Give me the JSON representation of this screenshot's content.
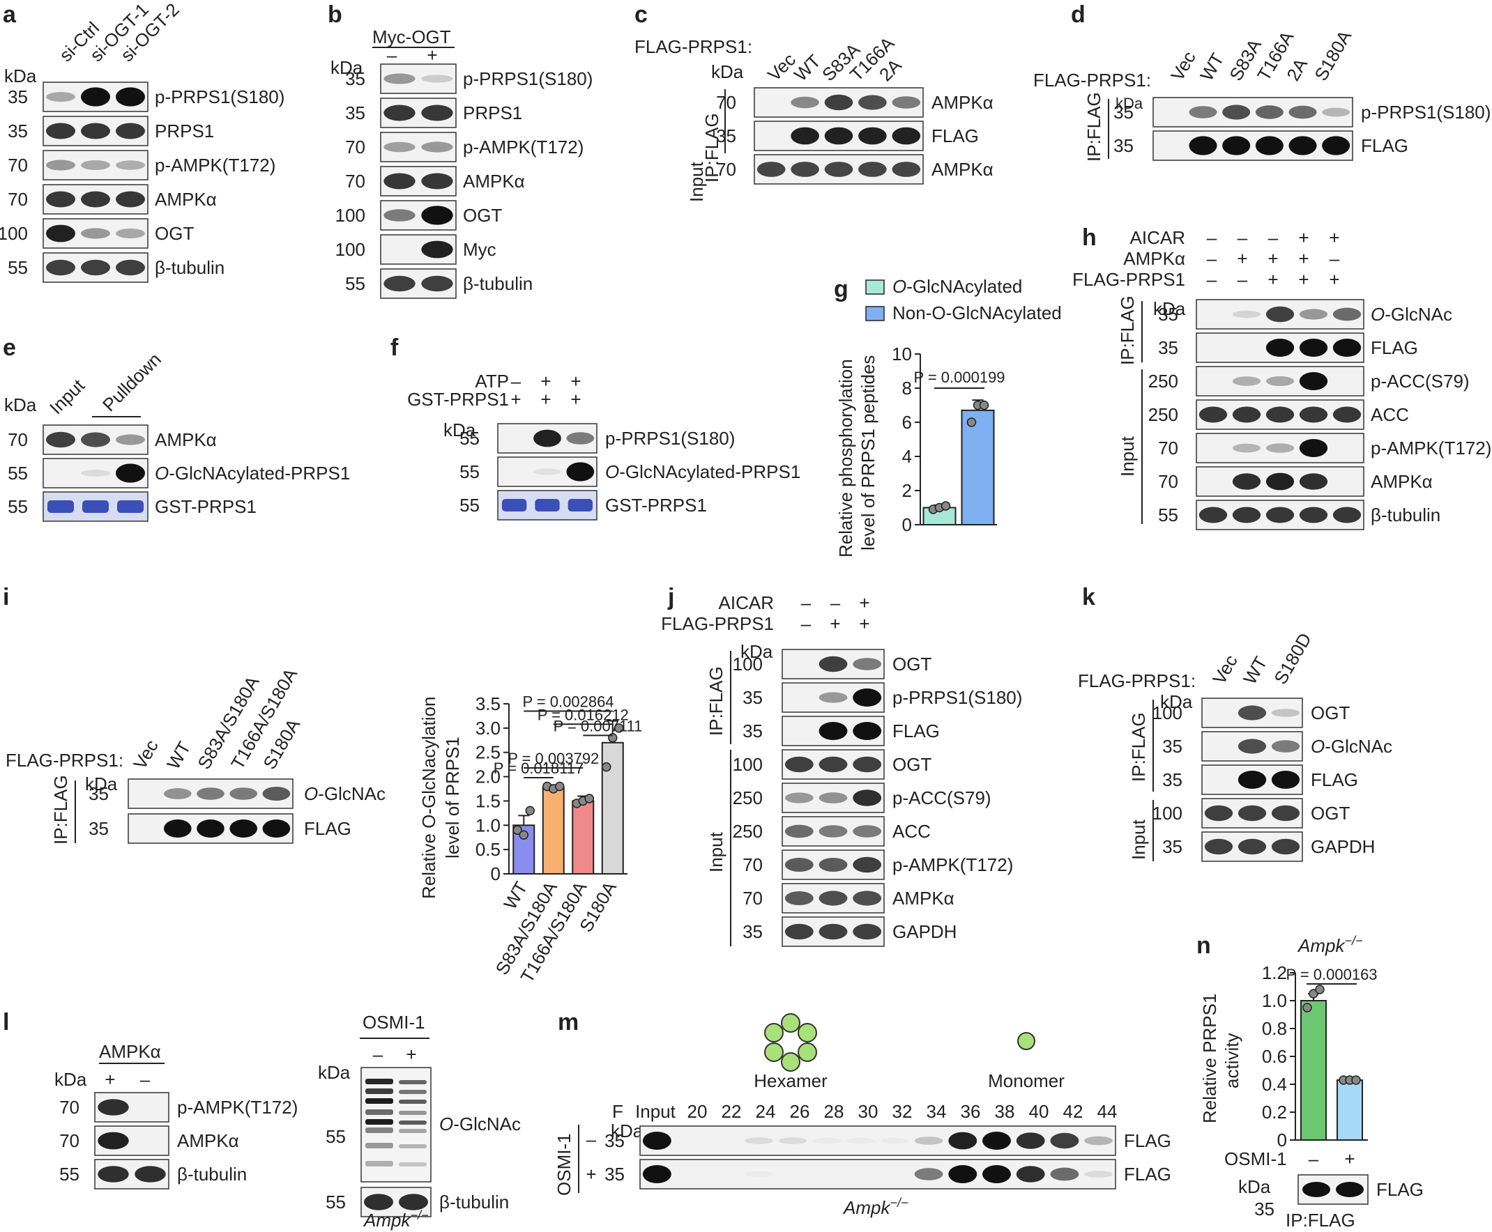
{
  "panels": {
    "a": {
      "letter": "a",
      "lanes": [
        "si-Ctrl",
        "si-OGT-1",
        "si-OGT-2"
      ],
      "kda_header": "kDa",
      "rows": [
        {
          "label": "p-PRPS1(S180)",
          "kda": "35"
        },
        {
          "label": "PRPS1",
          "kda": "35"
        },
        {
          "label": "p-AMPK(T172)",
          "kda": "70"
        },
        {
          "label": "AMPKα",
          "kda": "70"
        },
        {
          "label": "OGT",
          "kda": "100"
        },
        {
          "label": "β-tubulin",
          "kda": "55"
        }
      ]
    },
    "b": {
      "letter": "b",
      "header": "Myc-OGT",
      "signs": [
        "–",
        "+"
      ],
      "kda_header": "kDa",
      "rows": [
        {
          "label": "p-PRPS1(S180)",
          "kda": "35"
        },
        {
          "label": "PRPS1",
          "kda": "35"
        },
        {
          "label": "p-AMPK(T172)",
          "kda": "70"
        },
        {
          "label": "AMPKα",
          "kda": "70"
        },
        {
          "label": "OGT",
          "kda": "100"
        },
        {
          "label": "Myc",
          "kda": "100"
        },
        {
          "label": "β-tubulin",
          "kda": "55"
        }
      ]
    },
    "c": {
      "letter": "c",
      "construct": "FLAG-PRPS1:",
      "lanes": [
        "Vec",
        "WT",
        "S83A",
        "T166A",
        "2A"
      ],
      "kda_header": "kDa",
      "group_ip": "IP:FLAG",
      "group_input": "Input",
      "rows": [
        {
          "label": "AMPKα",
          "kda": "70"
        },
        {
          "label": "FLAG",
          "kda": "35"
        },
        {
          "label": "AMPKα",
          "kda": "70"
        }
      ]
    },
    "d": {
      "letter": "d",
      "construct": "FLAG-PRPS1:",
      "lanes": [
        "Vec",
        "WT",
        "S83A",
        "T166A",
        "2A",
        "S180A"
      ],
      "kda_header": "kDa",
      "group_ip": "IP:FLAG",
      "rows": [
        {
          "label": "p-PRPS1(S180)",
          "kda": "35"
        },
        {
          "label": "FLAG",
          "kda": "35"
        }
      ]
    },
    "e": {
      "letter": "e",
      "lanes": [
        "Input",
        "Pulldown"
      ],
      "kda_header": "kDa",
      "rows": [
        {
          "label": "AMPKα",
          "kda": "70"
        },
        {
          "label_prefix": "O",
          "label": "-GlcNAcylated-PRPS1",
          "kda": "55"
        },
        {
          "label": "GST-PRPS1",
          "kda": "55"
        }
      ]
    },
    "f": {
      "letter": "f",
      "conditions": [
        {
          "name": "ATP",
          "signs": [
            "–",
            "+",
            "+"
          ]
        },
        {
          "name": "GST-PRPS1",
          "signs": [
            "+",
            "+",
            "+"
          ]
        }
      ],
      "kda_header": "kDa",
      "rows": [
        {
          "label": "p-PRPS1(S180)",
          "kda": "55"
        },
        {
          "label_prefix": "O",
          "label": "-GlcNAcylated-PRPS1",
          "kda": "55"
        },
        {
          "label": "GST-PRPS1",
          "kda": "55"
        }
      ]
    },
    "g": {
      "letter": "g",
      "legend": [
        {
          "prefix": "O",
          "name": "-GlcNAcylated",
          "color": "#a8e8d8"
        },
        {
          "prefix": "Non-O",
          "name": "-GlcNAcylated",
          "color": "#7fb0f0"
        }
      ],
      "ylabel_line1": "Relative phosphorylation",
      "ylabel_line2": "level of PRPS1 peptides",
      "p_label": "P = 0.000199"
    },
    "h": {
      "letter": "h",
      "conditions": [
        {
          "name": "AICAR",
          "signs": [
            "–",
            "–",
            "–",
            "+",
            "+"
          ]
        },
        {
          "name": "AMPKα",
          "signs": [
            "–",
            "+",
            "+",
            "+",
            "–"
          ]
        },
        {
          "name": "FLAG-PRPS1",
          "signs": [
            "–",
            "–",
            "+",
            "+",
            "+"
          ]
        }
      ],
      "kda_header": "kDa",
      "group_ip": "IP:FLAG",
      "group_input": "Input",
      "rows": [
        {
          "label_prefix": "O",
          "label": "-GlcNAc",
          "kda": "35"
        },
        {
          "label": "FLAG",
          "kda": "35"
        },
        {
          "label": "p-ACC(S79)",
          "kda": "250"
        },
        {
          "label": "ACC",
          "kda": "250"
        },
        {
          "label": "p-AMPK(T172)",
          "kda": "70"
        },
        {
          "label": "AMPKα",
          "kda": "70"
        },
        {
          "label": "β-tubulin",
          "kda": "55"
        }
      ]
    },
    "i": {
      "letter": "i",
      "construct": "FLAG-PRPS1:",
      "lanes": [
        "Vec",
        "WT",
        "S83A/S180A",
        "T166A/S180A",
        "S180A"
      ],
      "kda_header": "kDa",
      "group_ip": "IP:FLAG",
      "rows": [
        {
          "label_prefix": "O",
          "label": "-GlcNAc",
          "kda": "35"
        },
        {
          "label": "FLAG",
          "kda": "35"
        }
      ],
      "p_labels": [
        "P = 0.002864",
        "P = 0.016212",
        "P = 0.007111",
        "P = 0.018117",
        "P = 0.003792"
      ]
    },
    "j": {
      "letter": "j",
      "conditions": [
        {
          "name": "AICAR",
          "signs": [
            "–",
            "–",
            "+"
          ]
        },
        {
          "name": "FLAG-PRPS1",
          "signs": [
            "–",
            "+",
            "+"
          ]
        }
      ],
      "kda_header": "kDa",
      "group_ip": "IP:FLAG",
      "group_input": "Input",
      "rows": [
        {
          "label": "OGT",
          "kda": "100"
        },
        {
          "label": "p-PRPS1(S180)",
          "kda": "35"
        },
        {
          "label": "FLAG",
          "kda": "35"
        },
        {
          "label": "OGT",
          "kda": "100"
        },
        {
          "label": "p-ACC(S79)",
          "kda": "250"
        },
        {
          "label": "ACC",
          "kda": "250"
        },
        {
          "label": "p-AMPK(T172)",
          "kda": "70"
        },
        {
          "label": "AMPKα",
          "kda": "70"
        },
        {
          "label": "GAPDH",
          "kda": "35"
        }
      ]
    },
    "k": {
      "letter": "k",
      "construct": "FLAG-PRPS1:",
      "lanes": [
        "Vec",
        "WT",
        "S180D"
      ],
      "kda_header": "kDa",
      "group_ip": "IP:FLAG",
      "group_input": "Input",
      "rows": [
        {
          "label": "OGT",
          "kda": "100"
        },
        {
          "label_prefix": "O",
          "label": "-GlcNAc",
          "kda": "35"
        },
        {
          "label": "FLAG",
          "kda": "35"
        },
        {
          "label": "OGT",
          "kda": "100"
        },
        {
          "label": "GAPDH",
          "kda": "35"
        }
      ]
    },
    "l": {
      "letter": "l",
      "left_header": "AMPKα",
      "left_signs": [
        "+",
        "–"
      ],
      "kda_header": "kDa",
      "left_rows": [
        {
          "label": "p-AMPK(T172)",
          "kda": "70"
        },
        {
          "label": "AMPKα",
          "kda": "70"
        },
        {
          "label": "β-tubulin",
          "kda": "55"
        }
      ],
      "right_header": "OSMI-1",
      "right_signs": [
        "–",
        "+"
      ],
      "right_rows": [
        {
          "label_prefix": "O",
          "label": "-GlcNAc",
          "kda": "55"
        },
        {
          "label": "β-tubulin",
          "kda": "55"
        }
      ],
      "genotype": "Ampk",
      "genotype_sup": "−/−"
    },
    "m": {
      "letter": "m",
      "hexamer": "Hexamer",
      "monomer": "Monomer",
      "f_label": "F",
      "input_label": "Input",
      "fractions": [
        "20",
        "22",
        "24",
        "26",
        "28",
        "30",
        "32",
        "34",
        "36",
        "38",
        "40",
        "42",
        "44"
      ],
      "kda_header": "kDa",
      "side_label": "OSMI-1",
      "row_signs": [
        "–",
        "+"
      ],
      "rows": [
        {
          "label": "FLAG",
          "kda": "35"
        },
        {
          "label": "FLAG",
          "kda": "35"
        }
      ],
      "genotype": "Ampk",
      "genotype_sup": "−/−"
    },
    "n": {
      "letter": "n",
      "title": "Ampk",
      "title_sup": "−/−",
      "ylabel_line1": "Relative PRPS1",
      "ylabel_line2": "activity",
      "p_label": "P = 0.000163",
      "osmi_label": "OSMI-1",
      "signs": [
        "–",
        "+"
      ],
      "kda_header": "kDa",
      "blot_label": "FLAG",
      "blot_kda": "35",
      "ip_label": "IP:FLAG"
    }
  },
  "chart_data": [
    {
      "id": "g",
      "type": "bar",
      "categories": [
        "O-GlcNAcylated",
        "Non-O-GlcNAcylated"
      ],
      "values": [
        1.0,
        6.7
      ],
      "errors": [
        0.15,
        0.6
      ],
      "points": [
        [
          0.9,
          1.0,
          1.1
        ],
        [
          6.0,
          7.0,
          7.0
        ]
      ],
      "colors": [
        "#a8e8d8",
        "#7fb0f0"
      ],
      "ylim": [
        0,
        10
      ],
      "yticks": [
        0,
        2,
        4,
        6,
        8,
        10
      ],
      "ylabel": "Relative phosphorylation level of PRPS1 peptides"
    },
    {
      "id": "i",
      "type": "bar",
      "categories": [
        "WT",
        "S83A/S180A",
        "T166A/S180A",
        "S180A"
      ],
      "values": [
        1.0,
        1.78,
        1.5,
        2.7
      ],
      "errors": [
        0.2,
        0.05,
        0.1,
        0.45
      ],
      "points": [
        [
          0.9,
          0.8,
          1.3
        ],
        [
          1.8,
          1.75,
          1.8
        ],
        [
          1.45,
          1.5,
          1.55
        ],
        [
          2.2,
          2.8,
          3.0
        ]
      ],
      "colors": [
        "#8a8cf0",
        "#f8b070",
        "#f08a8a",
        "#d8d8d8"
      ],
      "ylim": [
        0,
        3.5
      ],
      "yticks": [
        0,
        0.5,
        1.0,
        1.5,
        2.0,
        2.5,
        3.0,
        3.5
      ],
      "ylabel": "Relative O-GlcNacylation level of PRPS1"
    },
    {
      "id": "n",
      "type": "bar",
      "categories": [
        "–",
        "+"
      ],
      "values": [
        1.0,
        0.43
      ],
      "errors": [
        0.05,
        0.01
      ],
      "points": [
        [
          0.95,
          1.05,
          1.08
        ],
        [
          0.43,
          0.43,
          0.43
        ]
      ],
      "colors": [
        "#6cc870",
        "#a8d8f8"
      ],
      "ylim": [
        0,
        1.2
      ],
      "yticks": [
        0,
        0.2,
        0.4,
        0.6,
        0.8,
        1.0,
        1.2
      ],
      "ylabel": "Relative PRPS1 activity"
    }
  ]
}
